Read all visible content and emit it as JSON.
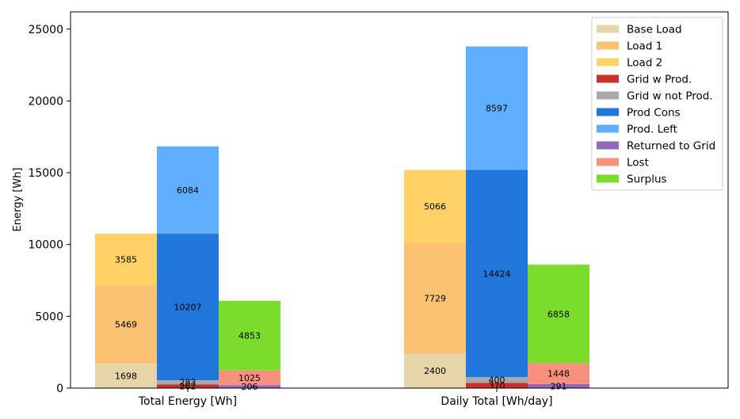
{
  "chart_data": {
    "type": "bar",
    "title": "",
    "xlabel": "",
    "ylabel": "Energy [Wh]",
    "ylim": [
      0,
      26200
    ],
    "yticks": [
      0,
      5000,
      10000,
      15000,
      20000,
      25000
    ],
    "categories": [
      "Total Energy [Wh]",
      "Daily Total [Wh/day]"
    ],
    "grid": false,
    "legend_position": "top-right",
    "stacks": [
      {
        "id": "load",
        "series": [
          {
            "name": "Base Load",
            "color": "#e6d5a8",
            "values": [
              1698,
              2400
            ]
          },
          {
            "name": "Load 1",
            "color": "#fbc271",
            "values": [
              5469,
              7729
            ]
          },
          {
            "name": "Load 2",
            "color": "#fed265",
            "values": [
              3585,
              5066
            ]
          }
        ]
      },
      {
        "id": "grid_production",
        "series": [
          {
            "name": "Grid w Prod.",
            "color": "#c9302c",
            "values": [
              262,
              370
            ]
          },
          {
            "name": "Grid w not Prod.",
            "color": "#a9a9a9",
            "values": [
              283,
              400
            ]
          },
          {
            "name": "Prod Cons",
            "color": "#2176dc",
            "values": [
              10207,
              14424
            ]
          },
          {
            "name": "Prod. Left",
            "color": "#60affe",
            "values": [
              6084,
              8597
            ]
          }
        ]
      },
      {
        "id": "output",
        "series": [
          {
            "name": "Returned to Grid",
            "color": "#9467bd",
            "values": [
              206,
              291
            ]
          },
          {
            "name": "Lost",
            "color": "#f8907e",
            "values": [
              1025,
              1448
            ]
          },
          {
            "name": "Surplus",
            "color": "#7cdc2c",
            "values": [
              4853,
              6858
            ]
          }
        ]
      }
    ],
    "legend": [
      "Base Load",
      "Load 1",
      "Load 2",
      "Grid w Prod.",
      "Grid w not Prod.",
      "Prod Cons",
      "Prod. Left",
      "Returned to Grid",
      "Lost",
      "Surplus"
    ]
  }
}
